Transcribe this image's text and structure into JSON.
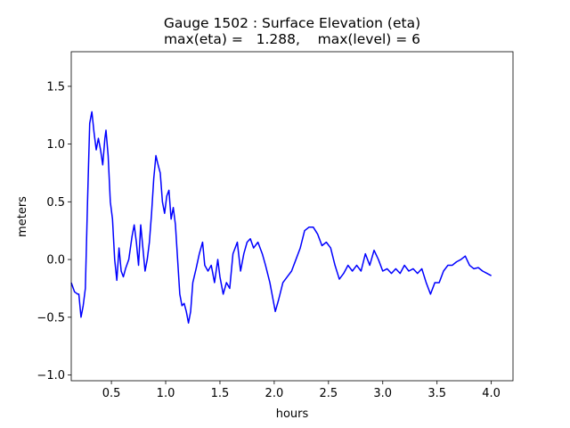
{
  "chart_data": {
    "type": "line",
    "title": "Gauge 1502 : Surface Elevation (eta)",
    "subtitle": "max(eta) =   1.288,    max(level) = 6",
    "xlabel": "hours",
    "ylabel": "meters",
    "xlim": [
      0.13,
      4.2
    ],
    "ylim": [
      -1.05,
      1.8
    ],
    "xticks": [
      0.5,
      {
        "value": 1,
        "label": "1.0"
      },
      1.5,
      {
        "value": 2,
        "label": "2.0"
      },
      2.5,
      {
        "value": 3,
        "label": "3.0"
      },
      3.5,
      {
        "value": 4,
        "label": "4.0"
      }
    ],
    "yticks": [
      {
        "value": -1,
        "label": "−1.0"
      },
      {
        "value": -0.5,
        "label": "−0.5"
      },
      {
        "value": 0,
        "label": "0.0"
      },
      0.5,
      {
        "value": 1,
        "label": "1.0"
      },
      1.5
    ],
    "x": [
      0.13,
      0.16,
      0.19,
      0.2,
      0.22,
      0.24,
      0.26,
      0.28,
      0.3,
      0.32,
      0.34,
      0.36,
      0.38,
      0.4,
      0.42,
      0.44,
      0.45,
      0.47,
      0.49,
      0.51,
      0.53,
      0.55,
      0.57,
      0.59,
      0.61,
      0.63,
      0.66,
      0.69,
      0.71,
      0.73,
      0.75,
      0.77,
      0.79,
      0.81,
      0.83,
      0.85,
      0.87,
      0.89,
      0.91,
      0.93,
      0.95,
      0.97,
      0.99,
      1.01,
      1.03,
      1.05,
      1.07,
      1.09,
      1.11,
      1.13,
      1.15,
      1.17,
      1.19,
      1.21,
      1.23,
      1.25,
      1.28,
      1.31,
      1.34,
      1.36,
      1.39,
      1.42,
      1.45,
      1.48,
      1.5,
      1.53,
      1.56,
      1.59,
      1.62,
      1.66,
      1.69,
      1.72,
      1.75,
      1.78,
      1.81,
      1.85,
      1.89,
      1.92,
      1.96,
      1.99,
      2.01,
      2.04,
      2.08,
      2.12,
      2.16,
      2.2,
      2.24,
      2.28,
      2.32,
      2.36,
      2.4,
      2.44,
      2.48,
      2.52,
      2.56,
      2.6,
      2.64,
      2.68,
      2.72,
      2.76,
      2.8,
      2.84,
      2.88,
      2.92,
      2.96,
      3.0,
      3.04,
      3.08,
      3.12,
      3.16,
      3.2,
      3.24,
      3.28,
      3.32,
      3.36,
      3.4,
      3.44,
      3.48,
      3.52,
      3.56,
      3.6,
      3.64,
      3.68,
      3.72,
      3.76,
      3.8,
      3.84,
      3.88,
      3.92,
      3.96,
      4.0
    ],
    "series": [
      {
        "name": "eta",
        "color": "#0000ff",
        "values": [
          -0.2,
          -0.28,
          -0.3,
          -0.3,
          -0.5,
          -0.4,
          -0.25,
          0.5,
          1.18,
          1.28,
          1.1,
          0.95,
          1.05,
          0.95,
          0.82,
          1.05,
          1.12,
          0.9,
          0.5,
          0.35,
          0.0,
          -0.18,
          0.1,
          -0.1,
          -0.15,
          -0.08,
          0.0,
          0.2,
          0.3,
          0.15,
          -0.05,
          0.3,
          0.1,
          -0.1,
          0.0,
          0.15,
          0.4,
          0.7,
          0.9,
          0.82,
          0.75,
          0.5,
          0.4,
          0.55,
          0.6,
          0.35,
          0.45,
          0.3,
          0.0,
          -0.3,
          -0.4,
          -0.38,
          -0.45,
          -0.55,
          -0.45,
          -0.2,
          -0.08,
          0.05,
          0.15,
          -0.05,
          -0.1,
          -0.05,
          -0.2,
          0.0,
          -0.15,
          -0.3,
          -0.2,
          -0.25,
          0.05,
          0.15,
          -0.1,
          0.05,
          0.15,
          0.18,
          0.1,
          0.15,
          0.05,
          -0.05,
          -0.2,
          -0.35,
          -0.45,
          -0.35,
          -0.2,
          -0.15,
          -0.1,
          0.0,
          0.1,
          0.25,
          0.28,
          0.28,
          0.22,
          0.12,
          0.15,
          0.1,
          -0.05,
          -0.17,
          -0.12,
          -0.05,
          -0.1,
          -0.05,
          -0.1,
          0.05,
          -0.05,
          0.08,
          0.0,
          -0.1,
          -0.08,
          -0.12,
          -0.08,
          -0.12,
          -0.05,
          -0.1,
          -0.08,
          -0.12,
          -0.08,
          -0.2,
          -0.3,
          -0.2,
          -0.2,
          -0.1,
          -0.05,
          -0.05,
          -0.02,
          0.0,
          0.03,
          -0.05,
          -0.08,
          -0.07,
          -0.1,
          -0.12,
          -0.14
        ]
      }
    ]
  }
}
